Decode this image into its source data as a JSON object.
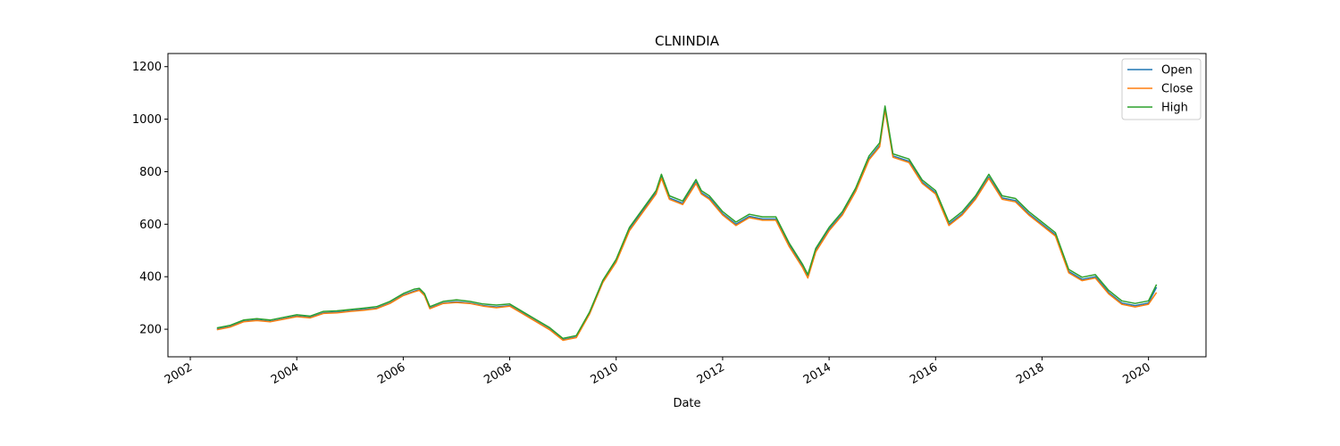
{
  "chart_data": {
    "type": "line",
    "title": "CLNINDIA",
    "xlabel": "Date",
    "ylabel": "",
    "xlim": [
      2001.58,
      2021.08
    ],
    "ylim": [
      95,
      1250
    ],
    "x_ticks": [
      {
        "value": 2002,
        "label": "2002"
      },
      {
        "value": 2004,
        "label": "2004"
      },
      {
        "value": 2006,
        "label": "2006"
      },
      {
        "value": 2008,
        "label": "2008"
      },
      {
        "value": 2010,
        "label": "2010"
      },
      {
        "value": 2012,
        "label": "2012"
      },
      {
        "value": 2014,
        "label": "2014"
      },
      {
        "value": 2016,
        "label": "2016"
      },
      {
        "value": 2018,
        "label": "2018"
      },
      {
        "value": 2020,
        "label": "2020"
      }
    ],
    "y_ticks": [
      {
        "value": 200,
        "label": "200"
      },
      {
        "value": 400,
        "label": "400"
      },
      {
        "value": 600,
        "label": "600"
      },
      {
        "value": 800,
        "label": "800"
      },
      {
        "value": 1000,
        "label": "1000"
      },
      {
        "value": 1200,
        "label": "1200"
      }
    ],
    "grid": false,
    "legend_position": "top-right",
    "x": [
      2002.5,
      2002.75,
      2003.0,
      2003.25,
      2003.5,
      2003.75,
      2004.0,
      2004.25,
      2004.5,
      2004.75,
      2005.0,
      2005.25,
      2005.5,
      2005.75,
      2006.0,
      2006.2,
      2006.3,
      2006.4,
      2006.5,
      2006.75,
      2007.0,
      2007.25,
      2007.5,
      2007.75,
      2008.0,
      2008.25,
      2008.5,
      2008.75,
      2009.0,
      2009.25,
      2009.5,
      2009.75,
      2010.0,
      2010.25,
      2010.5,
      2010.75,
      2010.85,
      2011.0,
      2011.25,
      2011.5,
      2011.6,
      2011.75,
      2012.0,
      2012.25,
      2012.5,
      2012.75,
      2013.0,
      2013.25,
      2013.5,
      2013.6,
      2013.75,
      2014.0,
      2014.25,
      2014.5,
      2014.75,
      2014.95,
      2015.05,
      2015.2,
      2015.5,
      2015.75,
      2016.0,
      2016.25,
      2016.5,
      2016.75,
      2017.0,
      2017.25,
      2017.5,
      2017.75,
      2018.0,
      2018.25,
      2018.5,
      2018.75,
      2019.0,
      2019.25,
      2019.5,
      2019.75,
      2020.0,
      2020.15
    ],
    "series": [
      {
        "name": "Open",
        "color": "#1f77b4",
        "values": [
          200,
          210,
          230,
          235,
          230,
          240,
          250,
          245,
          262,
          265,
          270,
          275,
          280,
          300,
          330,
          345,
          350,
          330,
          280,
          300,
          305,
          300,
          290,
          285,
          290,
          260,
          230,
          200,
          160,
          170,
          260,
          380,
          460,
          580,
          650,
          720,
          780,
          700,
          680,
          760,
          720,
          700,
          640,
          600,
          630,
          620,
          620,
          520,
          440,
          400,
          500,
          580,
          640,
          730,
          850,
          900,
          1040,
          860,
          840,
          760,
          720,
          600,
          640,
          700,
          780,
          700,
          690,
          640,
          600,
          560,
          420,
          390,
          400,
          340,
          300,
          290,
          300,
          360
        ]
      },
      {
        "name": "Close",
        "color": "#ff7f0e",
        "values": [
          198,
          208,
          228,
          233,
          228,
          238,
          248,
          243,
          260,
          262,
          268,
          272,
          278,
          298,
          328,
          342,
          348,
          328,
          278,
          298,
          302,
          298,
          288,
          282,
          288,
          258,
          228,
          198,
          158,
          168,
          258,
          378,
          455,
          575,
          645,
          715,
          775,
          695,
          675,
          755,
          715,
          695,
          635,
          595,
          625,
          615,
          615,
          515,
          435,
          395,
          495,
          575,
          635,
          725,
          845,
          895,
          1035,
          855,
          835,
          755,
          715,
          595,
          635,
          695,
          775,
          695,
          685,
          635,
          595,
          555,
          415,
          385,
          395,
          335,
          295,
          285,
          295,
          340
        ]
      },
      {
        "name": "High",
        "color": "#2ca02c",
        "values": [
          205,
          215,
          235,
          240,
          235,
          245,
          255,
          250,
          268,
          270,
          275,
          280,
          286,
          306,
          336,
          352,
          356,
          336,
          286,
          306,
          312,
          306,
          296,
          292,
          296,
          266,
          236,
          206,
          165,
          176,
          266,
          386,
          466,
          588,
          658,
          728,
          790,
          708,
          688,
          770,
          728,
          708,
          648,
          608,
          638,
          628,
          628,
          528,
          448,
          408,
          508,
          588,
          648,
          738,
          860,
          910,
          1050,
          868,
          848,
          768,
          728,
          608,
          648,
          708,
          790,
          708,
          698,
          648,
          608,
          568,
          428,
          398,
          408,
          348,
          308,
          298,
          308,
          370
        ]
      }
    ]
  }
}
